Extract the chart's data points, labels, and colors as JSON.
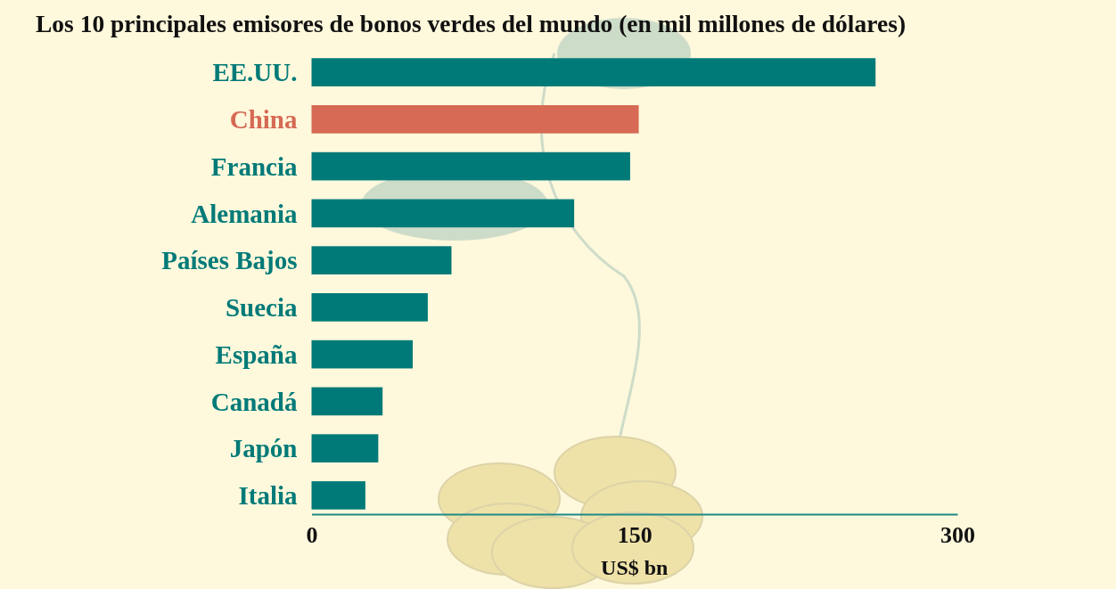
{
  "chart_data": {
    "type": "bar",
    "orientation": "horizontal",
    "title": "Los 10 principales emisores de bonos verdes del mundo (en mil millones de dólares)",
    "xlabel": "US$ bn",
    "categories": [
      "EE.UU.",
      "China",
      "Francia",
      "Alemania",
      "Países Bajos",
      "Suecia",
      "España",
      "Canadá",
      "Japón",
      "Italia"
    ],
    "values": [
      262,
      152,
      148,
      122,
      65,
      54,
      47,
      33,
      31,
      25
    ],
    "colors": [
      "#007a78",
      "#d66a54",
      "#007a78",
      "#007a78",
      "#007a78",
      "#007a78",
      "#007a78",
      "#007a78",
      "#007a78",
      "#007a78"
    ],
    "xlim": [
      0,
      300
    ],
    "xticks": [
      0,
      150,
      300
    ],
    "grid": false
  }
}
